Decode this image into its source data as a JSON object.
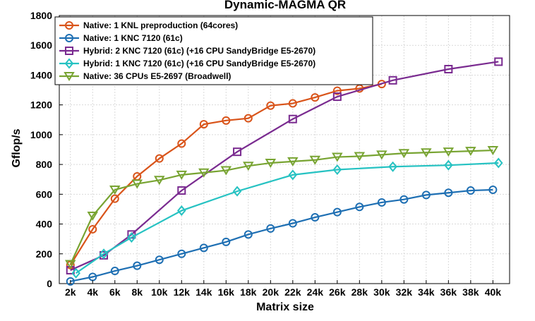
{
  "chart_data": {
    "type": "line",
    "title": "Dynamic-MAGMA QR",
    "xlabel": "Matrix size",
    "ylabel": "Gflop/s",
    "xlim": [
      1000,
      41500
    ],
    "ylim": [
      0,
      1800
    ],
    "xticks": [
      2000,
      4000,
      6000,
      8000,
      10000,
      12000,
      14000,
      16000,
      18000,
      20000,
      22000,
      24000,
      26000,
      28000,
      30000,
      32000,
      34000,
      36000,
      38000,
      40000
    ],
    "xticklabels": [
      "2k",
      "4k",
      "6k",
      "8k",
      "10k",
      "12k",
      "14k",
      "16k",
      "18k",
      "20k",
      "22k",
      "24k",
      "26k",
      "28k",
      "30k",
      "32k",
      "34k",
      "36k",
      "38k",
      "40k"
    ],
    "yticks": [
      0,
      200,
      400,
      600,
      800,
      1000,
      1200,
      1400,
      1600,
      1800
    ],
    "grid": true,
    "legend_position": "top-left",
    "series": [
      {
        "name": "Native:  1 KNL preproduction (64cores)",
        "color": "#d9541a",
        "marker": "circle",
        "x": [
          2000,
          4000,
          6000,
          8000,
          10000,
          12000,
          14000,
          16000,
          18000,
          20000,
          22000,
          24000,
          26000,
          28000,
          30000
        ],
        "y": [
          125,
          365,
          570,
          720,
          840,
          940,
          1070,
          1095,
          1110,
          1195,
          1210,
          1250,
          1295,
          1310,
          1340
        ]
      },
      {
        "name": "Native:  1 KNC 7120 (61c)",
        "color": "#1e6fb3",
        "marker": "circle",
        "x": [
          2000,
          4000,
          6000,
          8000,
          10000,
          12000,
          14000,
          16000,
          18000,
          20000,
          22000,
          24000,
          26000,
          28000,
          30000,
          32000,
          34000,
          36000,
          38000,
          40000
        ],
        "y": [
          15,
          45,
          85,
          120,
          160,
          200,
          240,
          280,
          330,
          370,
          405,
          445,
          480,
          515,
          545,
          565,
          595,
          610,
          625,
          630
        ]
      },
      {
        "name": "Hybrid: 2 KNC 7120 (61c)  (+16 CPU SandyBridge E5-2670)",
        "color": "#7a2b90",
        "marker": "square",
        "x": [
          2000,
          5000,
          7500,
          12000,
          17000,
          22000,
          26000,
          31000,
          36000,
          40500
        ],
        "y": [
          90,
          190,
          330,
          625,
          885,
          1105,
          1255,
          1365,
          1440,
          1490
        ]
      },
      {
        "name": "Hybrid: 1 KNC 7120 (61c)  (+16 CPU SandyBridge E5-2670)",
        "color": "#26c2c2",
        "marker": "diamond",
        "x": [
          2500,
          5000,
          7500,
          12000,
          17000,
          22000,
          26000,
          31000,
          36000,
          40500
        ],
        "y": [
          70,
          200,
          310,
          490,
          620,
          730,
          765,
          785,
          795,
          810
        ]
      },
      {
        "name": "Native:  36 CPUs E5-2697 (Broadwell)",
        "color": "#78a432",
        "marker": "triangle-down",
        "x": [
          2000,
          4000,
          6000,
          8000,
          10000,
          12000,
          14000,
          16000,
          18000,
          20000,
          22000,
          24000,
          26000,
          28000,
          30000,
          32000,
          34000,
          36000,
          38000,
          40000
        ],
        "y": [
          130,
          455,
          630,
          670,
          695,
          730,
          745,
          760,
          790,
          810,
          820,
          830,
          850,
          855,
          865,
          875,
          880,
          885,
          890,
          895
        ]
      }
    ]
  }
}
